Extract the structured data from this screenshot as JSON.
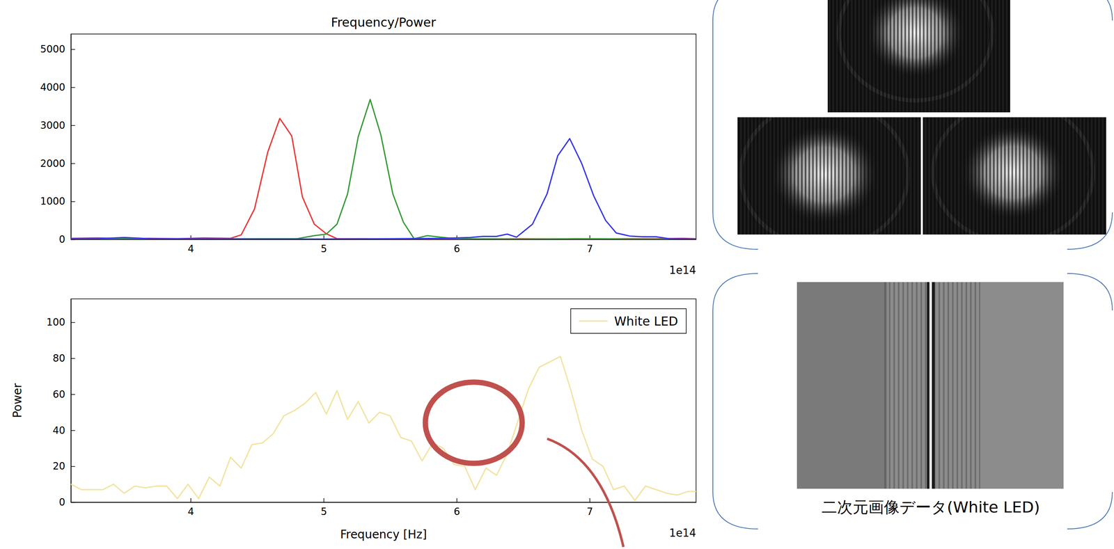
{
  "chart_data": [
    {
      "type": "line",
      "title": "Frequency/Power",
      "xlim": [
        3.1,
        7.8
      ],
      "xticks": [
        4,
        5,
        6,
        7
      ],
      "ylim": [
        0,
        5400
      ],
      "yticks": [
        0,
        1000,
        2000,
        3000,
        4000,
        5000
      ],
      "annotations": [
        "1e14"
      ],
      "series": [
        {
          "color": "#ee3333",
          "x": [
            3.1,
            3.3,
            3.5,
            3.7,
            3.9,
            4.1,
            4.3,
            4.38,
            4.48,
            4.58,
            4.67,
            4.76,
            4.84,
            4.93,
            5.02,
            5.1,
            5.3,
            5.5,
            5.7,
            5.9,
            6.1,
            6.3,
            6.5,
            6.7,
            6.9,
            7.1,
            7.3,
            7.5,
            7.7,
            7.8
          ],
          "values": [
            30,
            40,
            20,
            30,
            20,
            40,
            30,
            120,
            800,
            2300,
            3180,
            2720,
            1120,
            400,
            150,
            20,
            20,
            10,
            20,
            10,
            20,
            10,
            20,
            10,
            20,
            10,
            20,
            20,
            30,
            20
          ]
        },
        {
          "color": "#339933",
          "x": [
            3.1,
            3.5,
            4.0,
            4.5,
            4.8,
            4.93,
            5.02,
            5.1,
            5.18,
            5.26,
            5.35,
            5.43,
            5.52,
            5.6,
            5.68,
            5.78,
            5.88,
            6.0,
            6.5,
            7.0,
            7.5,
            7.8
          ],
          "values": [
            10,
            20,
            10,
            20,
            20,
            100,
            140,
            400,
            1200,
            2700,
            3680,
            2750,
            1200,
            450,
            20,
            100,
            60,
            20,
            10,
            20,
            10,
            10
          ]
        },
        {
          "color": "#3333ee",
          "x": [
            3.1,
            3.3,
            3.5,
            3.7,
            4.0,
            4.5,
            5.0,
            5.5,
            5.9,
            6.1,
            6.2,
            6.3,
            6.38,
            6.45,
            6.57,
            6.68,
            6.76,
            6.85,
            6.94,
            7.03,
            7.12,
            7.2,
            7.3,
            7.4,
            7.5,
            7.6,
            7.8
          ],
          "values": [
            20,
            20,
            50,
            20,
            20,
            10,
            10,
            20,
            30,
            50,
            80,
            80,
            140,
            60,
            400,
            1200,
            2200,
            2650,
            2000,
            1150,
            500,
            170,
            90,
            70,
            70,
            20,
            10
          ]
        }
      ]
    },
    {
      "type": "line",
      "x_label": "Frequency [Hz]",
      "y_label": "Power",
      "legend": "upper right",
      "xlim": [
        3.1,
        7.8
      ],
      "xticks": [
        4,
        5,
        6,
        7
      ],
      "ylim": [
        0,
        113
      ],
      "yticks": [
        0,
        20,
        40,
        60,
        80,
        100
      ],
      "annotations": [
        "1e14"
      ],
      "series": [
        {
          "name": "White LED",
          "color": "#f2e3a0",
          "x": [
            3.1,
            3.18,
            3.26,
            3.34,
            3.42,
            3.5,
            3.58,
            3.66,
            3.74,
            3.82,
            3.9,
            3.98,
            4.06,
            4.14,
            4.22,
            4.3,
            4.38,
            4.46,
            4.54,
            4.62,
            4.7,
            4.78,
            4.86,
            4.94,
            5.02,
            5.1,
            5.18,
            5.26,
            5.34,
            5.42,
            5.5,
            5.58,
            5.66,
            5.74,
            5.82,
            5.9,
            5.98,
            6.06,
            6.14,
            6.22,
            6.3,
            6.38,
            6.46,
            6.54,
            6.62,
            6.7,
            6.78,
            6.86,
            6.94,
            7.02,
            7.1,
            7.18,
            7.26,
            7.34,
            7.42,
            7.5,
            7.58,
            7.66,
            7.74,
            7.82
          ],
          "values": [
            10,
            7,
            7,
            7,
            10,
            5,
            9,
            8,
            9,
            9,
            2,
            10,
            2,
            14,
            9,
            25,
            19,
            32,
            33,
            38,
            48,
            51,
            55,
            61,
            49,
            62,
            46,
            56,
            44,
            50,
            48,
            36,
            34,
            23,
            33,
            30,
            21,
            20,
            7,
            19,
            15,
            27,
            45,
            63,
            75,
            78,
            81,
            62,
            40,
            24,
            20,
            7,
            9,
            1,
            9,
            7,
            5,
            4,
            6,
            6
          ]
        }
      ]
    }
  ],
  "image_caption": "二次元画像データ(White LED)"
}
